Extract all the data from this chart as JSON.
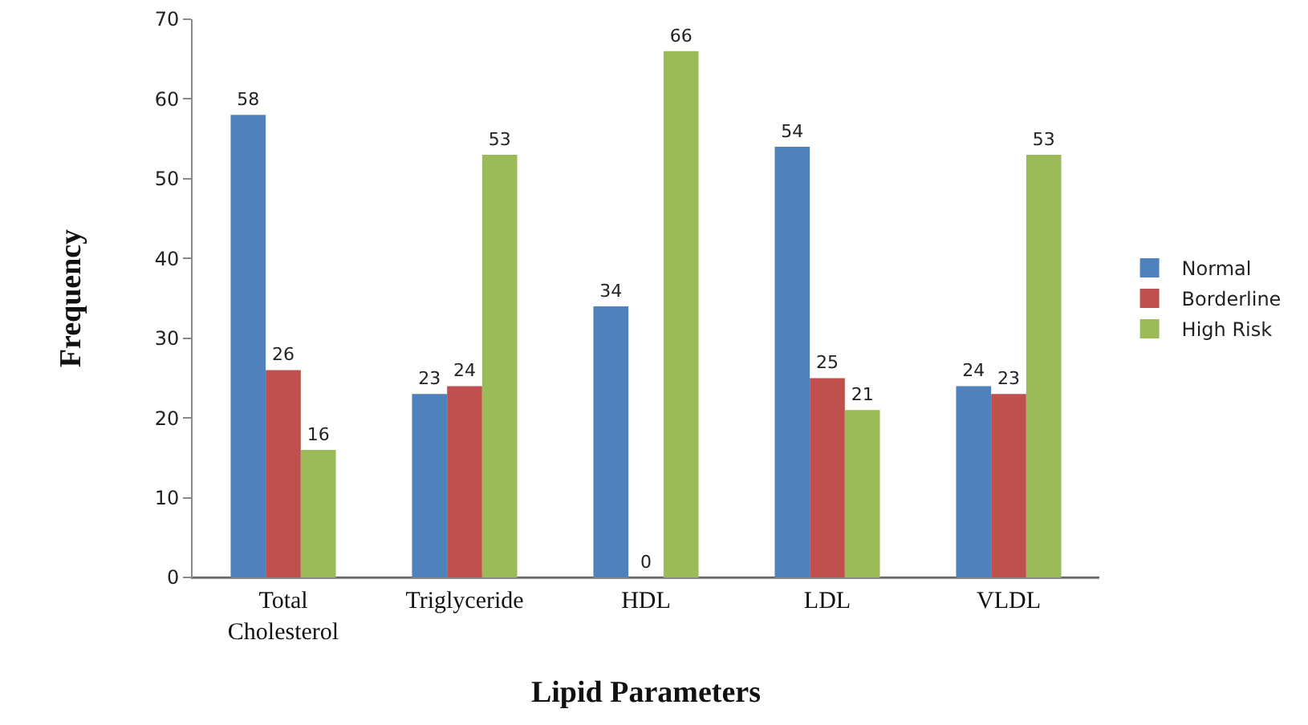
{
  "chart_data": {
    "type": "bar",
    "xlabel": "Lipid Parameters",
    "ylabel": "Frequency",
    "categories": [
      "Total Cholesterol",
      "Triglyceride",
      "HDL",
      "LDL",
      "VLDL"
    ],
    "series": [
      {
        "name": "Normal",
        "color": "#4f81bd",
        "values": [
          58,
          23,
          34,
          54,
          24
        ]
      },
      {
        "name": "Borderline",
        "color": "#c0504d",
        "values": [
          26,
          24,
          0,
          25,
          23
        ]
      },
      {
        "name": "High Risk",
        "color": "#9bbb59",
        "values": [
          16,
          53,
          66,
          21,
          53
        ]
      }
    ],
    "ylim": [
      0,
      70
    ],
    "yticks": [
      0,
      10,
      20,
      30,
      40,
      50,
      60,
      70
    ],
    "grid": false,
    "legend": "right",
    "data_labels": true
  }
}
